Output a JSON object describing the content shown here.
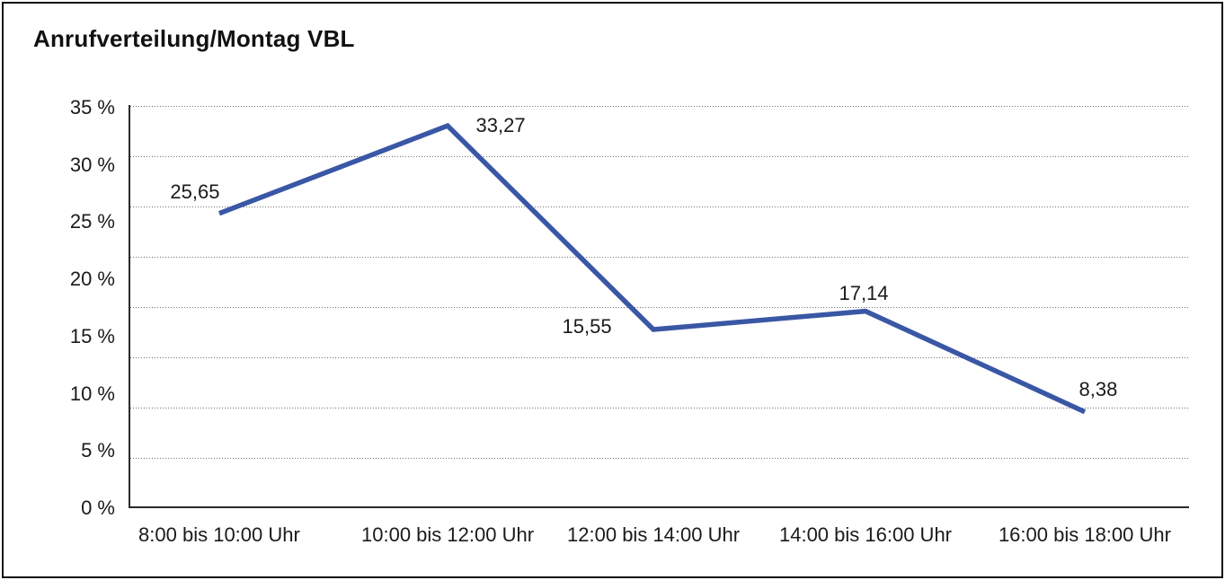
{
  "title": "Anrufverteilung/Montag VBL",
  "colors": {
    "line": "#3a57a5",
    "axis": "#2a2a2a",
    "grid": "#707070",
    "text": "#1a1a1a",
    "frame": "#111111",
    "background": "#ffffff"
  },
  "chart_data": {
    "type": "line",
    "title": "Anrufverteilung/Montag VBL",
    "categories": [
      "8:00 bis 10:00 Uhr",
      "10:00 bis 12:00 Uhr",
      "12:00 bis 14:00 Uhr",
      "14:00 bis 16:00 Uhr",
      "16:00 bis 18:00 Uhr"
    ],
    "values": [
      25.65,
      33.27,
      15.55,
      17.14,
      8.38
    ],
    "value_labels": [
      "25,65",
      "33,27",
      "15,55",
      "17,14",
      "8,38"
    ],
    "y_ticks": [
      "35 %",
      "30 %",
      "25 %",
      "20 %",
      "15 %",
      "10 %",
      "5 %",
      "0 %"
    ],
    "ylim": [
      0,
      35
    ],
    "xlabel": "",
    "ylabel": "",
    "legend": "none",
    "grid": "horizontal-dotted",
    "unit": "%"
  }
}
